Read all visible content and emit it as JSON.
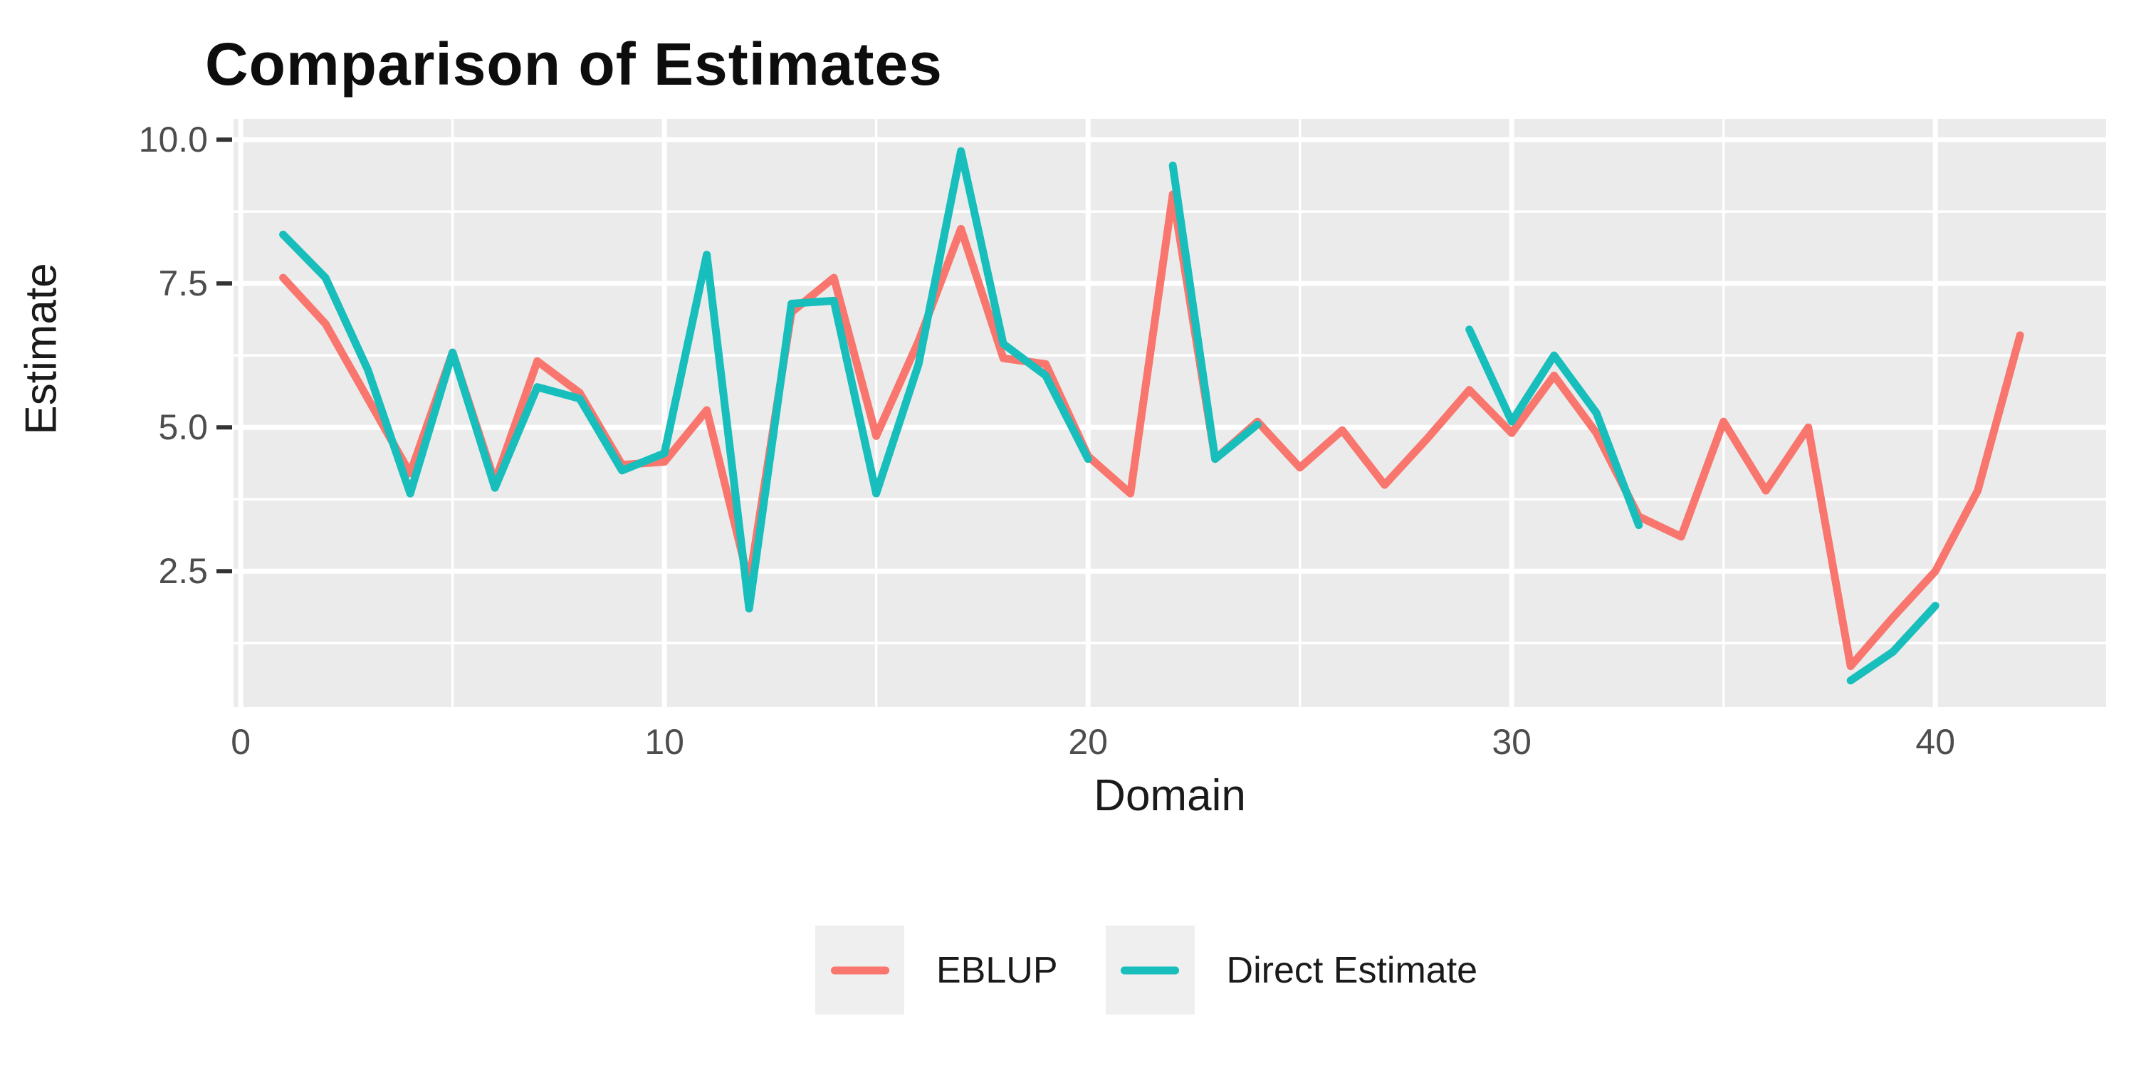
{
  "title": "Comparison of Estimates",
  "colors": {
    "eblup": "#F8766D",
    "direct": "#17BEBB",
    "panel_background": "#EBEBEB",
    "grid": "#FFFFFF",
    "tick_text": "#4D4D4D",
    "tick_mark": "#333333",
    "legend_key_background": "#EFEFEF",
    "page_background": "#FFFFFF"
  },
  "legend": {
    "items": [
      {
        "label": "EBLUP",
        "color": "#F8766D"
      },
      {
        "label": "Direct Estimate",
        "color": "#17BEBB"
      }
    ],
    "position": "bottom"
  },
  "chart_data": {
    "type": "line",
    "title": "Comparison of Estimates",
    "xlabel": "Domain",
    "ylabel": "Estimate",
    "grid": "on",
    "legend_position": "bottom",
    "x": [
      1,
      2,
      3,
      4,
      5,
      6,
      7,
      8,
      9,
      10,
      11,
      12,
      13,
      14,
      15,
      16,
      17,
      18,
      19,
      20,
      21,
      22,
      23,
      24,
      25,
      26,
      27,
      28,
      29,
      30,
      31,
      32,
      33,
      34,
      35,
      36,
      37,
      38,
      39,
      40,
      41,
      42
    ],
    "series": [
      {
        "name": "EBLUP",
        "color": "#F8766D",
        "values": [
          7.6,
          6.8,
          5.5,
          4.2,
          6.3,
          4.05,
          6.15,
          5.6,
          4.35,
          4.4,
          5.3,
          2.3,
          7.0,
          7.6,
          4.85,
          6.5,
          8.45,
          6.2,
          6.1,
          4.5,
          3.85,
          9.05,
          4.45,
          5.1,
          4.3,
          4.95,
          4.0,
          4.8,
          5.65,
          4.9,
          5.9,
          4.9,
          3.45,
          3.1,
          5.1,
          3.9,
          5.0,
          0.85,
          1.7,
          2.5,
          3.9,
          6.6
        ]
      },
      {
        "name": "Direct Estimate",
        "color": "#17BEBB",
        "values": [
          8.35,
          7.6,
          6.0,
          3.85,
          6.3,
          3.95,
          5.7,
          5.5,
          4.25,
          4.55,
          8.0,
          1.85,
          7.15,
          7.2,
          3.85,
          6.1,
          9.8,
          6.45,
          5.9,
          4.45,
          null,
          9.55,
          4.45,
          5.05,
          null,
          null,
          null,
          null,
          6.7,
          5.1,
          6.25,
          5.25,
          3.3,
          null,
          null,
          null,
          null,
          0.6,
          1.1,
          1.9,
          null,
          null
        ]
      }
    ],
    "x_axis": {
      "ticks": [
        {
          "value": 0,
          "label": "0"
        },
        {
          "value": 10,
          "label": "10"
        },
        {
          "value": 20,
          "label": "20"
        },
        {
          "value": 30,
          "label": "30"
        },
        {
          "value": 40,
          "label": "40"
        }
      ],
      "minor_ticks": [
        5,
        15,
        25,
        35
      ],
      "range": [
        -0.17,
        44.03
      ]
    },
    "y_axis": {
      "ticks": [
        {
          "value": 10.0,
          "label": "10.0"
        },
        {
          "value": 7.5,
          "label": "7.5"
        },
        {
          "value": 5.0,
          "label": "5.0"
        },
        {
          "value": 2.5,
          "label": "2.5"
        }
      ],
      "minor_ticks": [
        1.25,
        3.75,
        6.25,
        8.75
      ],
      "range": [
        0.14,
        10.36
      ]
    }
  }
}
